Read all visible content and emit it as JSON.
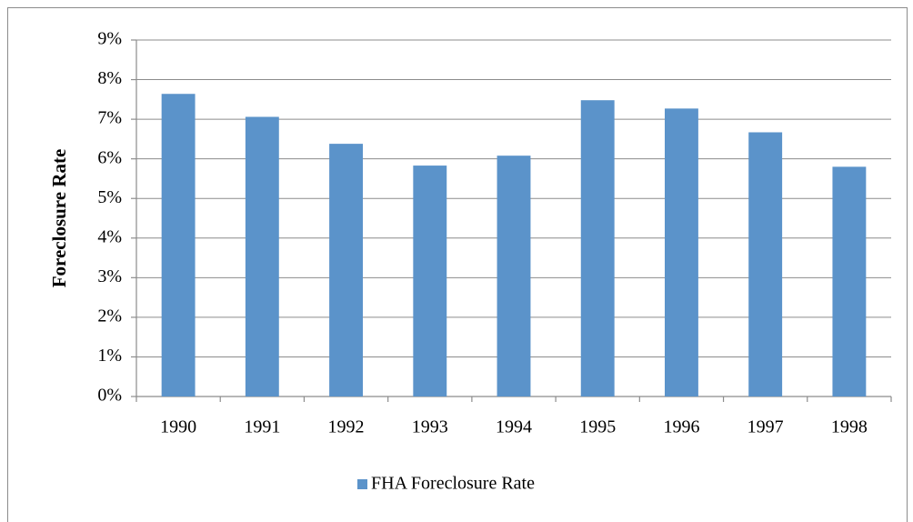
{
  "chart_data": {
    "type": "bar",
    "y_axis_label": "Foreclosure Rate",
    "categories": [
      "1990",
      "1991",
      "1992",
      "1993",
      "1994",
      "1995",
      "1996",
      "1997",
      "1998"
    ],
    "series": [
      {
        "name": "FHA Foreclosure Rate",
        "color": "#5b93ca",
        "values": [
          7.64,
          7.06,
          6.38,
          5.83,
          6.08,
          7.48,
          7.27,
          6.67,
          5.8
        ]
      }
    ],
    "ylim": [
      0,
      9
    ],
    "yticks": [
      {
        "value": 0,
        "label": "0%"
      },
      {
        "value": 1,
        "label": "1%"
      },
      {
        "value": 2,
        "label": "2%"
      },
      {
        "value": 3,
        "label": "3%"
      },
      {
        "value": 4,
        "label": "4%"
      },
      {
        "value": 5,
        "label": "5%"
      },
      {
        "value": 6,
        "label": "6%"
      },
      {
        "value": 7,
        "label": "7%"
      },
      {
        "value": 8,
        "label": "8%"
      },
      {
        "value": 9,
        "label": "9%"
      }
    ],
    "grid": true,
    "legend": "bottom"
  }
}
